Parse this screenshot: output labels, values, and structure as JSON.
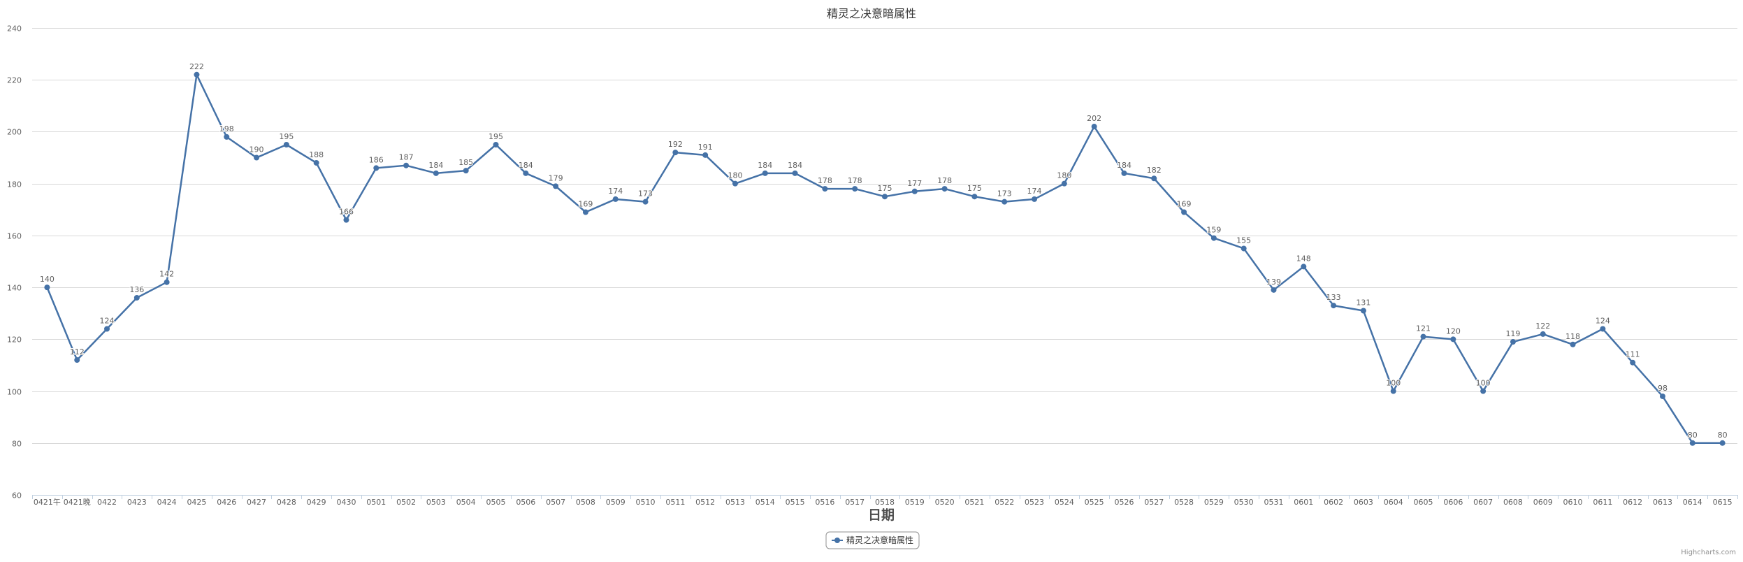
{
  "chart_data": {
    "type": "line",
    "title": "精灵之决意暗属性",
    "xlabel": "日期",
    "ylabel": "",
    "ylim": [
      60,
      240
    ],
    "yticks": [
      60,
      80,
      100,
      120,
      140,
      160,
      180,
      200,
      220,
      240
    ],
    "grid": true,
    "legend_position": "bottom-center",
    "credits": "Highcharts.com",
    "colors": {
      "series": "#4572a7",
      "grid": "#d8d8d8",
      "axis": "#c0d0e0"
    },
    "categories": [
      "0421午",
      "0421晚",
      "0422",
      "0423",
      "0424",
      "0425",
      "0426",
      "0427",
      "0428",
      "0429",
      "0430",
      "0501",
      "0502",
      "0503",
      "0504",
      "0505",
      "0506",
      "0507",
      "0508",
      "0509",
      "0510",
      "0511",
      "0512",
      "0513",
      "0514",
      "0515",
      "0516",
      "0517",
      "0518",
      "0519",
      "0520",
      "0521",
      "0522",
      "0523",
      "0524",
      "0525",
      "0526",
      "0527",
      "0528",
      "0529",
      "0530",
      "0531",
      "0601",
      "0602",
      "0603",
      "0604",
      "0605",
      "0606",
      "0607",
      "0608",
      "0609",
      "0610",
      "0611",
      "0612",
      "0613",
      "0614",
      "0615"
    ],
    "series": [
      {
        "name": "精灵之决意暗属性",
        "values": [
          140,
          112,
          124,
          136,
          142,
          222,
          198,
          190,
          195,
          188,
          166,
          186,
          187,
          184,
          185,
          195,
          184,
          179,
          169,
          174,
          173,
          192,
          191,
          180,
          184,
          184,
          178,
          178,
          175,
          177,
          178,
          175,
          173,
          174,
          180,
          202,
          184,
          182,
          169,
          159,
          155,
          139,
          148,
          133,
          131,
          100,
          121,
          120,
          100,
          119,
          122,
          118,
          124,
          111,
          98,
          80,
          80
        ]
      }
    ]
  }
}
